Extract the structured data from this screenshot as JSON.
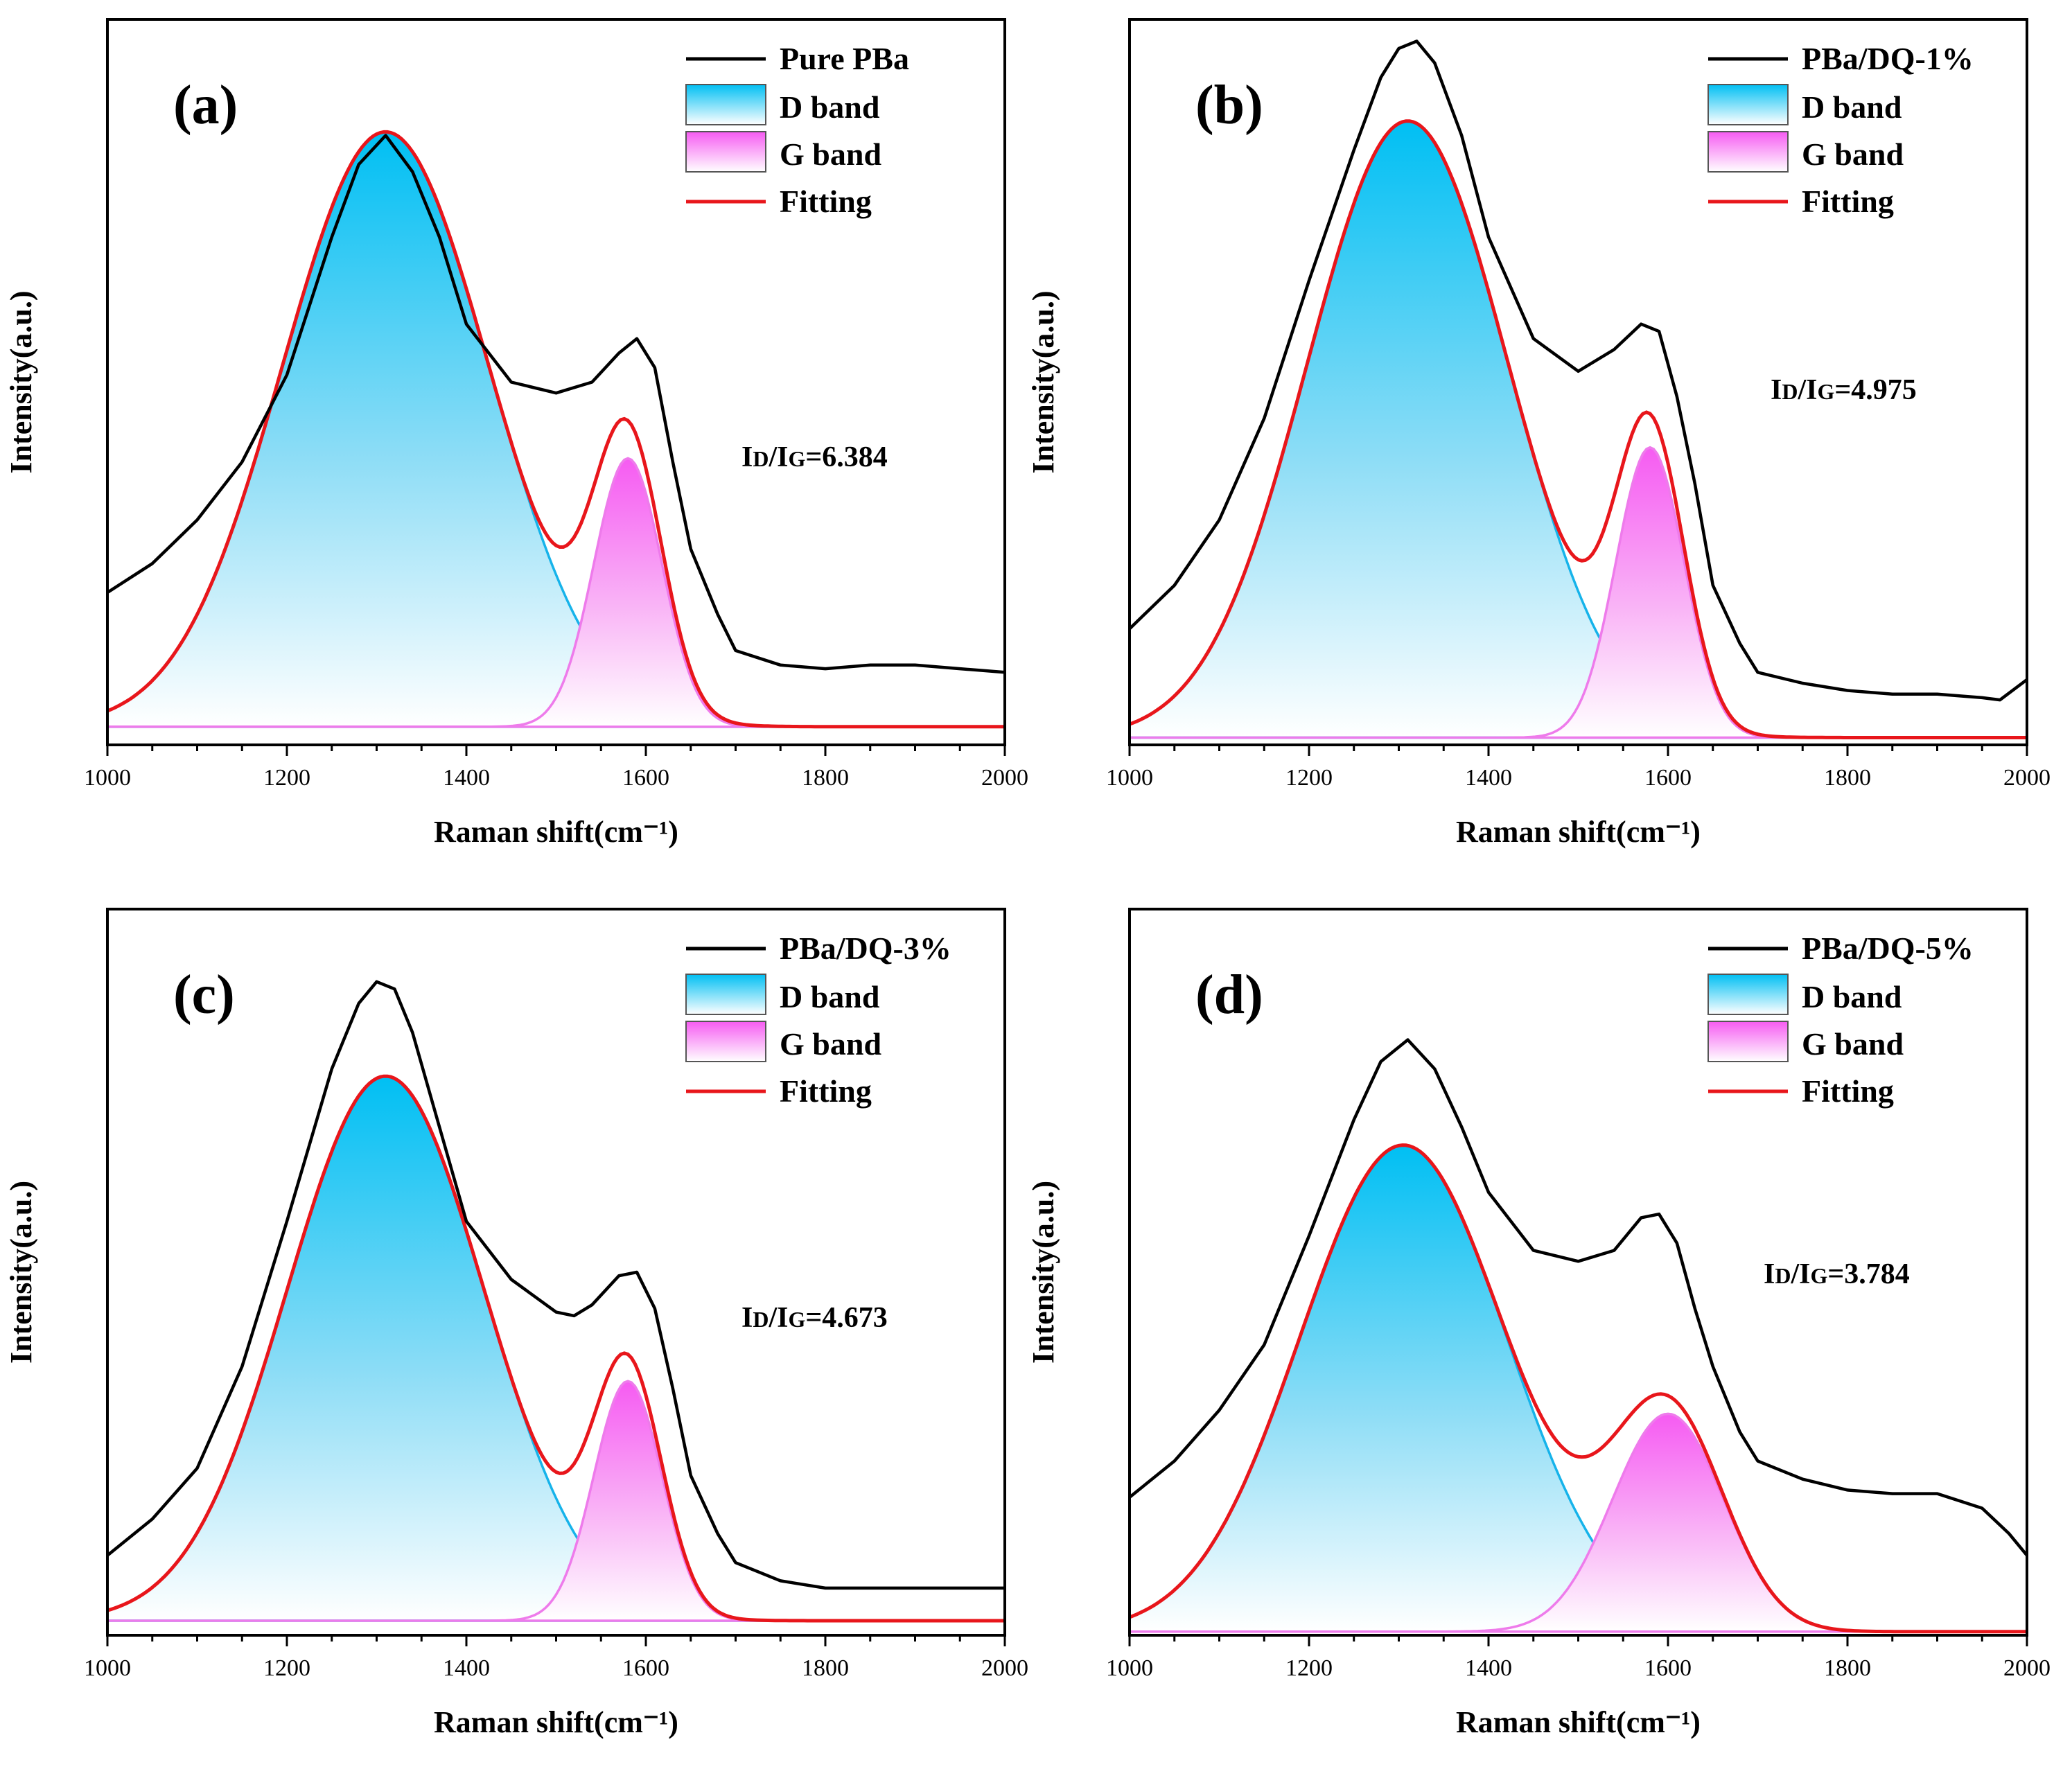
{
  "chart_data": [
    {
      "panel_label": "(a)",
      "type": "line",
      "xlabel": "Raman shift(cm⁻¹)",
      "ylabel": "Intensity(a.u.)",
      "xlim": [
        1000,
        2000
      ],
      "ylim": [
        0,
        100
      ],
      "xticks": [
        "1000",
        "1200",
        "1400",
        "1600",
        "1800",
        "2000"
      ],
      "legend": {
        "placement": "top-right",
        "entries": [
          "Pure PBa",
          "D band",
          "G band",
          "Fitting"
        ]
      },
      "ratio": {
        "prefix": "I",
        "sub1": "D",
        "mid": "/I",
        "sub2": "G",
        "value": "=6.384"
      },
      "fit": {
        "d_center": 1310,
        "d_height": 82,
        "d_sigma": 115,
        "g_center": 1580,
        "g_height": 37,
        "g_sigma": 38,
        "baseline": 2.5
      },
      "raw": {
        "x": [
          1000,
          1050,
          1100,
          1150,
          1200,
          1250,
          1280,
          1310,
          1340,
          1370,
          1400,
          1450,
          1500,
          1540,
          1570,
          1590,
          1610,
          1630,
          1650,
          1680,
          1700,
          1750,
          1800,
          1850,
          1900,
          1950,
          2000
        ],
        "y": [
          21,
          25,
          31,
          39,
          51,
          70,
          80,
          84,
          79,
          70,
          58,
          50,
          48.5,
          50,
          54,
          56,
          52,
          39,
          27,
          18,
          13,
          11,
          10.5,
          11,
          11,
          10.5,
          10
        ]
      },
      "d_band": {
        "center": 1310,
        "height": 82
      },
      "g_band": {
        "center": 1580,
        "height": 37
      }
    },
    {
      "panel_label": "(b)",
      "type": "line",
      "xlabel": "Raman shift(cm⁻¹)",
      "ylabel": "Intensity(a.u.)",
      "xlim": [
        1000,
        2000
      ],
      "ylim": [
        0,
        100
      ],
      "xticks": [
        "1000",
        "1200",
        "1400",
        "1600",
        "1800",
        "2000"
      ],
      "legend": {
        "placement": "top-right",
        "entries": [
          "PBa/DQ-1%",
          "D band",
          "G band",
          "Fitting"
        ]
      },
      "ratio": {
        "prefix": "I",
        "sub1": "D",
        "mid": "/I",
        "sub2": "G",
        "value": "=4.975"
      },
      "fit": {
        "d_center": 1310,
        "d_height": 85,
        "d_sigma": 112,
        "g_center": 1580,
        "g_height": 40,
        "g_sigma": 38,
        "baseline": 1
      },
      "raw": {
        "x": [
          1000,
          1050,
          1100,
          1150,
          1200,
          1250,
          1280,
          1300,
          1320,
          1340,
          1370,
          1400,
          1450,
          1500,
          1540,
          1570,
          1590,
          1610,
          1630,
          1650,
          1680,
          1700,
          1750,
          1800,
          1850,
          1900,
          1950,
          1970,
          2000
        ],
        "y": [
          16,
          22,
          31,
          45,
          64,
          82,
          92,
          96,
          97,
          94,
          84,
          70,
          56,
          51.5,
          54.5,
          58,
          57,
          48,
          36,
          22,
          14,
          10,
          8.5,
          7.5,
          7,
          7,
          6.5,
          6.2,
          9
        ]
      },
      "d_band": {
        "center": 1310,
        "height": 85
      },
      "g_band": {
        "center": 1580,
        "height": 40
      }
    },
    {
      "panel_label": "(c)",
      "type": "line",
      "xlabel": "Raman shift(cm⁻¹)",
      "ylabel": "Intensity(a.u.)",
      "xlim": [
        1000,
        2000
      ],
      "ylim": [
        0,
        100
      ],
      "xticks": [
        "1000",
        "1200",
        "1400",
        "1600",
        "1800",
        "2000"
      ],
      "legend": {
        "placement": "top-right",
        "entries": [
          "PBa/DQ-3%",
          "D band",
          "G band",
          "Fitting"
        ]
      },
      "ratio": {
        "prefix": "I",
        "sub1": "D",
        "mid": "/I",
        "sub2": "G",
        "value": "=4.673"
      },
      "fit": {
        "d_center": 1310,
        "d_height": 75,
        "d_sigma": 110,
        "g_center": 1580,
        "g_height": 33,
        "g_sigma": 38,
        "baseline": 2
      },
      "raw": {
        "x": [
          1000,
          1050,
          1100,
          1150,
          1200,
          1250,
          1280,
          1300,
          1320,
          1340,
          1370,
          1400,
          1450,
          1500,
          1520,
          1540,
          1570,
          1590,
          1610,
          1630,
          1650,
          1680,
          1700,
          1750,
          1800,
          1850,
          1900,
          1950,
          2000
        ],
        "y": [
          11,
          16,
          23,
          37,
          57,
          78,
          87,
          90,
          89,
          83,
          70,
          57,
          49,
          44.5,
          44,
          45.5,
          49.5,
          50,
          45,
          34,
          22,
          14,
          10,
          7.5,
          6.5,
          6.5,
          6.5,
          6.5,
          6.5
        ]
      },
      "d_band": {
        "center": 1310,
        "height": 75
      },
      "g_band": {
        "center": 1580,
        "height": 33
      }
    },
    {
      "panel_label": "(d)",
      "type": "line",
      "xlabel": "Raman shift(cm⁻¹)",
      "ylabel": "Intensity(a.u.)",
      "xlim": [
        1000,
        2000
      ],
      "ylim": [
        0,
        100
      ],
      "xticks": [
        "1000",
        "1200",
        "1400",
        "1600",
        "1800",
        "2000"
      ],
      "legend": {
        "placement": "top-right",
        "entries": [
          "PBa/DQ-5%",
          "D band",
          "G band",
          "Fitting"
        ]
      },
      "ratio": {
        "prefix": "I",
        "sub1": "D",
        "mid": "/I",
        "sub2": "G",
        "value": "=3.784"
      },
      "fit": {
        "d_center": 1305,
        "d_height": 67,
        "d_sigma": 115,
        "g_center": 1600,
        "g_height": 30,
        "g_sigma": 62,
        "baseline": 0.5
      },
      "raw": {
        "x": [
          1000,
          1050,
          1100,
          1150,
          1200,
          1250,
          1280,
          1310,
          1340,
          1370,
          1400,
          1450,
          1500,
          1540,
          1570,
          1590,
          1610,
          1630,
          1650,
          1680,
          1700,
          1750,
          1800,
          1850,
          1900,
          1950,
          1980,
          2000
        ],
        "y": [
          19,
          24,
          31,
          40,
          55,
          71,
          79,
          82,
          78,
          70,
          61,
          53,
          51.5,
          53,
          57.5,
          58,
          54,
          45,
          37,
          28,
          24,
          21.5,
          20,
          19.5,
          19.5,
          17.5,
          14,
          11
        ]
      },
      "d_band": {
        "center": 1305,
        "height": 67
      },
      "g_band": {
        "center": 1600,
        "height": 30
      }
    }
  ]
}
